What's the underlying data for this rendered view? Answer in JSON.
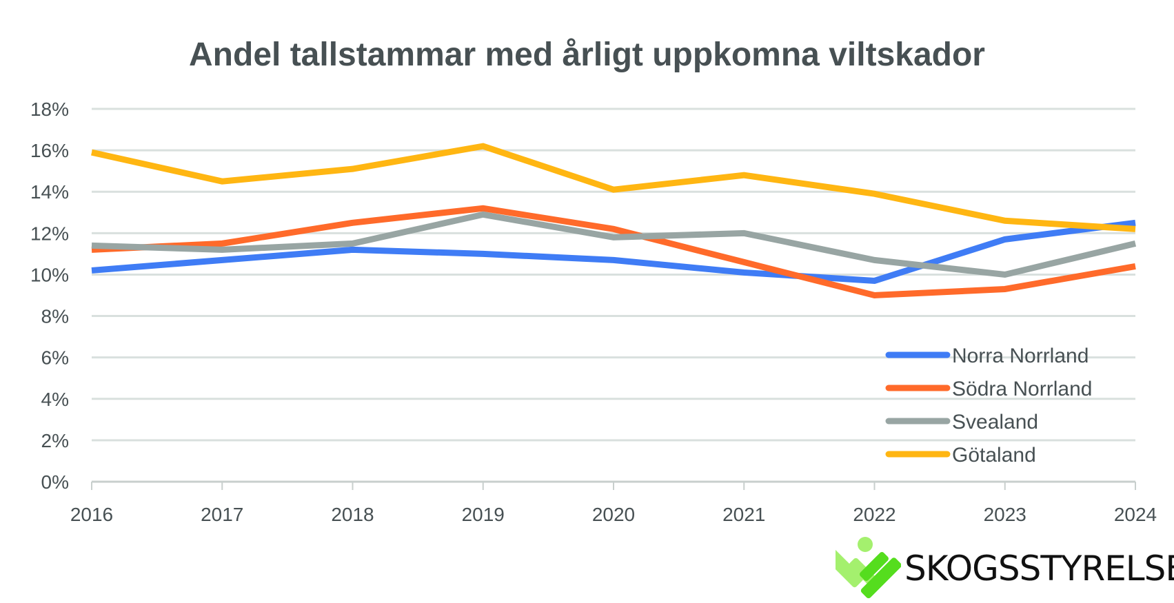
{
  "chart_data": {
    "type": "line",
    "title": "Andel tallstammar med årligt uppkomna viltskador",
    "x": [
      "2016",
      "2017",
      "2018",
      "2019",
      "2020",
      "2021",
      "2022",
      "2023",
      "2024"
    ],
    "ylim": [
      0,
      18
    ],
    "yticks": [
      "0%",
      "2%",
      "4%",
      "6%",
      "8%",
      "10%",
      "12%",
      "14%",
      "16%",
      "18%"
    ],
    "ytick_values": [
      0,
      2,
      4,
      6,
      8,
      10,
      12,
      14,
      16,
      18
    ],
    "grid": true,
    "legend_position": "bottom-right",
    "xlabel": "",
    "ylabel": "",
    "series": [
      {
        "name": "Norra Norrland",
        "color": "#3F7CF5",
        "values": [
          10.2,
          10.7,
          11.2,
          11.0,
          10.7,
          10.1,
          9.7,
          11.7,
          12.5
        ]
      },
      {
        "name": "Södra Norrland",
        "color": "#FF6A2A",
        "values": [
          11.2,
          11.5,
          12.5,
          13.2,
          12.2,
          10.6,
          9.0,
          9.3,
          10.4
        ]
      },
      {
        "name": "Svealand",
        "color": "#98A5A3",
        "values": [
          11.4,
          11.2,
          11.5,
          12.9,
          11.8,
          12.0,
          10.7,
          10.0,
          11.5
        ]
      },
      {
        "name": "Götaland",
        "color": "#FFB612",
        "values": [
          15.9,
          14.5,
          15.1,
          16.2,
          14.1,
          14.8,
          13.9,
          12.6,
          12.2
        ]
      }
    ]
  },
  "logo": {
    "text": "SKOGSSTYRELSEN"
  }
}
